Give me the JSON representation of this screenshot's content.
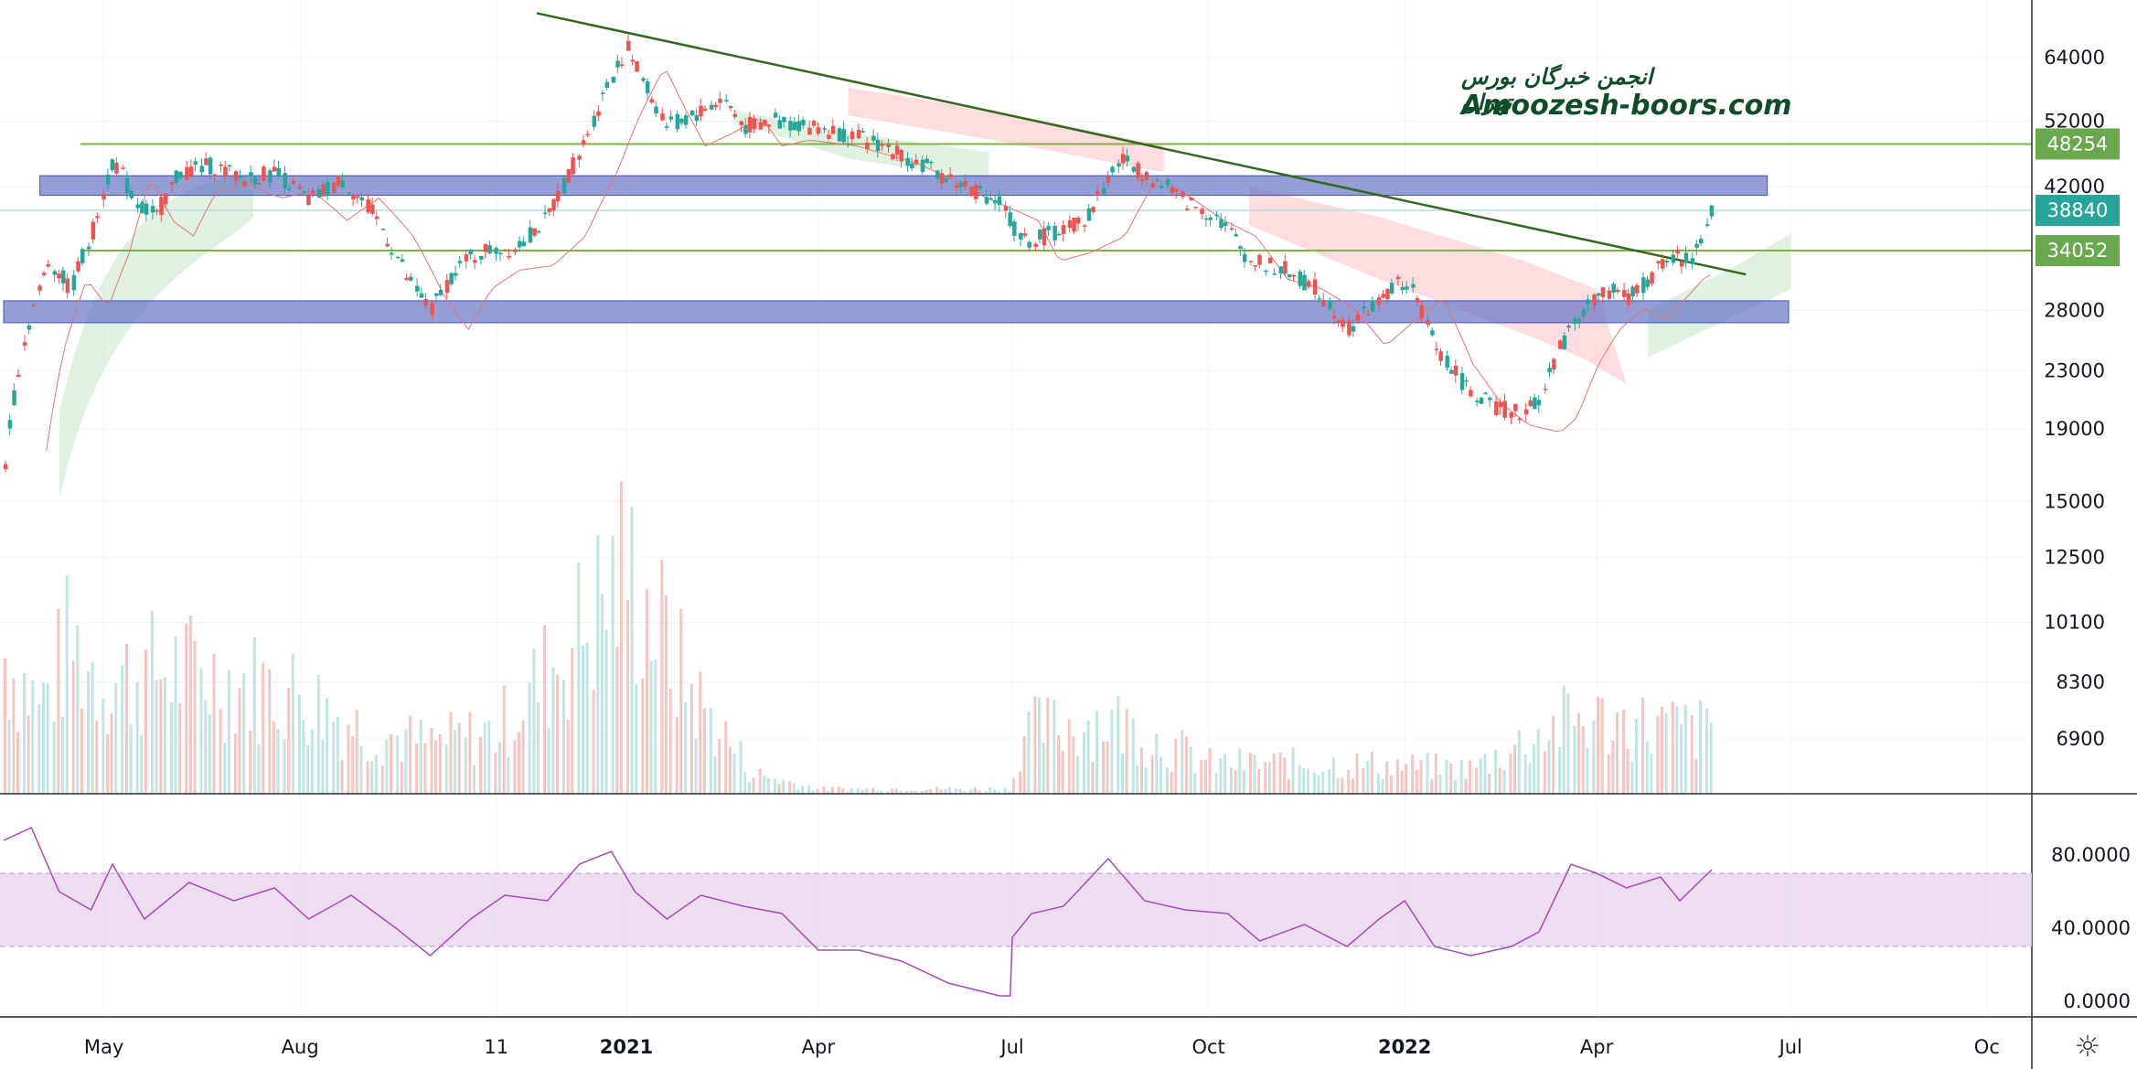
{
  "watermark": {
    "persian": "انجمن خبرگان بورس تهران",
    "site": "Amoozesh-boors.com"
  },
  "colors": {
    "up": "#26a69a",
    "down": "#ef5350",
    "zone": "#5c6bc0",
    "level": "#7cb342",
    "trendline": "#33691e",
    "rsi": "#ab47bc",
    "rsi_band": "#e9d5ee",
    "cloud_bull": "#c8e6c9",
    "cloud_bear": "#ffcdd2",
    "tag_green": "#6aa84f",
    "tag_teal": "#26a69a"
  },
  "toolbar": {
    "settings_icon": "gear-icon"
  },
  "chart_data": {
    "type": "candlestick",
    "scale": "log",
    "x_labels": [
      "May",
      "Aug",
      "11",
      "2021",
      "Apr",
      "Jul",
      "Oct",
      "2022",
      "Apr",
      "Jul",
      "Oc"
    ],
    "bold_x_labels": [
      "2021",
      "2022"
    ],
    "y_ticks": [
      64000,
      52000,
      42000,
      28000,
      23000,
      19000,
      15000,
      12500,
      10100,
      8300,
      6900
    ],
    "y_labels": [
      "64000",
      "52000",
      "42000",
      "28000",
      "23000",
      "19000",
      "15000",
      "12500",
      "10100",
      "8300",
      "6900"
    ],
    "price_tags": [
      {
        "value": 48254,
        "label": "48254",
        "color": "#6aa84f"
      },
      {
        "value": 38840,
        "label": "38840",
        "color": "#26a69a"
      },
      {
        "value": 34052,
        "label": "34052",
        "color": "#6aa84f"
      }
    ],
    "horizontal_levels": [
      48254,
      34052
    ],
    "last_price_line": 38840,
    "zones": [
      {
        "from": "2020-04-01",
        "to": "2022-06-20",
        "low": 40800,
        "high": 43500
      },
      {
        "from": "2020-03-15",
        "to": "2022-06-30",
        "low": 26900,
        "high": 28900
      }
    ],
    "trendline": {
      "from": {
        "date": "2020-11-20",
        "price": 74000
      },
      "to": {
        "date": "2022-06-10",
        "price": 31500
      }
    },
    "price_path": [
      [
        "2020-03-15",
        17000
      ],
      [
        "2020-03-25",
        26000
      ],
      [
        "2020-04-05",
        33000
      ],
      [
        "2020-04-15",
        30000
      ],
      [
        "2020-04-25",
        36000
      ],
      [
        "2020-05-05",
        46000
      ],
      [
        "2020-05-15",
        40000
      ],
      [
        "2020-05-25",
        38000
      ],
      [
        "2020-06-05",
        44000
      ],
      [
        "2020-06-20",
        45000
      ],
      [
        "2020-07-05",
        43000
      ],
      [
        "2020-07-20",
        44000
      ],
      [
        "2020-08-05",
        40000
      ],
      [
        "2020-08-20",
        43000
      ],
      [
        "2020-09-05",
        38000
      ],
      [
        "2020-09-20",
        31000
      ],
      [
        "2020-10-01",
        28000
      ],
      [
        "2020-10-12",
        32000
      ],
      [
        "2020-10-25",
        34000
      ],
      [
        "2020-11-10",
        34500
      ],
      [
        "2020-11-25",
        38000
      ],
      [
        "2020-12-10",
        47000
      ],
      [
        "2020-12-20",
        56000
      ],
      [
        "2021-01-01",
        66000
      ],
      [
        "2021-01-10",
        58000
      ],
      [
        "2021-01-20",
        51000
      ],
      [
        "2021-02-01",
        53000
      ],
      [
        "2021-02-15",
        56000
      ],
      [
        "2021-02-25",
        51000
      ],
      [
        "2021-03-10",
        52000
      ],
      [
        "2021-04-01",
        51000
      ],
      [
        "2021-05-01",
        48000
      ],
      [
        "2021-06-01",
        43000
      ],
      [
        "2021-06-25",
        40000
      ],
      [
        "2021-07-05",
        35000
      ],
      [
        "2021-07-20",
        36000
      ],
      [
        "2021-08-05",
        38000
      ],
      [
        "2021-08-20",
        46000
      ],
      [
        "2021-09-05",
        43000
      ],
      [
        "2021-09-20",
        40000
      ],
      [
        "2021-10-05",
        38000
      ],
      [
        "2021-10-20",
        33000
      ],
      [
        "2021-11-05",
        32000
      ],
      [
        "2021-11-20",
        30000
      ],
      [
        "2021-12-05",
        26500
      ],
      [
        "2021-12-20",
        29000
      ],
      [
        "2022-01-01",
        31000
      ],
      [
        "2022-01-15",
        25000
      ],
      [
        "2022-01-28",
        22000
      ],
      [
        "2022-02-10",
        20500
      ],
      [
        "2022-02-25",
        20000
      ],
      [
        "2022-03-05",
        21000
      ],
      [
        "2022-03-15",
        25000
      ],
      [
        "2022-03-25",
        28000
      ],
      [
        "2022-04-05",
        30000
      ],
      [
        "2022-04-15",
        29000
      ],
      [
        "2022-04-25",
        31000
      ],
      [
        "2022-05-05",
        33500
      ],
      [
        "2022-05-15",
        33000
      ],
      [
        "2022-05-25",
        38840
      ]
    ],
    "volume_path": [
      [
        "2020-03-15",
        0.55
      ],
      [
        "2020-04-01",
        0.35
      ],
      [
        "2020-04-15",
        0.6
      ],
      [
        "2020-05-01",
        0.45
      ],
      [
        "2020-06-01",
        0.5
      ],
      [
        "2020-07-01",
        0.45
      ],
      [
        "2020-08-01",
        0.4
      ],
      [
        "2020-09-01",
        0.25
      ],
      [
        "2020-10-01",
        0.2
      ],
      [
        "2020-11-01",
        0.25
      ],
      [
        "2020-12-01",
        0.55
      ],
      [
        "2021-01-01",
        0.9
      ],
      [
        "2021-02-01",
        0.4
      ],
      [
        "2021-03-01",
        0.08
      ],
      [
        "2021-04-01",
        0.02
      ],
      [
        "2021-07-01",
        0.02
      ],
      [
        "2021-07-05",
        0.25
      ],
      [
        "2021-08-15",
        0.3
      ],
      [
        "2021-10-01",
        0.12
      ],
      [
        "2021-12-01",
        0.12
      ],
      [
        "2022-02-01",
        0.1
      ],
      [
        "2022-03-20",
        0.3
      ],
      [
        "2022-05-25",
        0.25
      ]
    ],
    "rsi": {
      "lower": 30,
      "upper": 70,
      "ticks": [
        0,
        40,
        80
      ],
      "tick_labels": [
        "0.0000",
        "40.0000",
        "80.0000"
      ],
      "path": [
        [
          "2020-03-15",
          88
        ],
        [
          "2020-03-28",
          95
        ],
        [
          "2020-04-10",
          60
        ],
        [
          "2020-04-25",
          50
        ],
        [
          "2020-05-05",
          75
        ],
        [
          "2020-05-20",
          45
        ],
        [
          "2020-06-10",
          65
        ],
        [
          "2020-07-01",
          55
        ],
        [
          "2020-07-20",
          62
        ],
        [
          "2020-08-05",
          45
        ],
        [
          "2020-08-25",
          58
        ],
        [
          "2020-09-15",
          40
        ],
        [
          "2020-10-01",
          25
        ],
        [
          "2020-10-20",
          45
        ],
        [
          "2020-11-05",
          58
        ],
        [
          "2020-11-25",
          55
        ],
        [
          "2020-12-10",
          75
        ],
        [
          "2020-12-25",
          82
        ],
        [
          "2021-01-05",
          60
        ],
        [
          "2021-01-20",
          45
        ],
        [
          "2021-02-05",
          58
        ],
        [
          "2021-02-25",
          52
        ],
        [
          "2021-03-15",
          48
        ],
        [
          "2021-04-01",
          28
        ],
        [
          "2021-04-20",
          28
        ],
        [
          "2021-05-10",
          22
        ],
        [
          "2021-06-01",
          10
        ],
        [
          "2021-06-25",
          3
        ],
        [
          "2021-06-30",
          3
        ],
        [
          "2021-07-01",
          35
        ],
        [
          "2021-07-10",
          48
        ],
        [
          "2021-07-25",
          52
        ],
        [
          "2021-08-15",
          78
        ],
        [
          "2021-09-01",
          55
        ],
        [
          "2021-09-20",
          50
        ],
        [
          "2021-10-10",
          48
        ],
        [
          "2021-10-25",
          33
        ],
        [
          "2021-11-15",
          42
        ],
        [
          "2021-12-05",
          30
        ],
        [
          "2021-12-20",
          45
        ],
        [
          "2022-01-01",
          55
        ],
        [
          "2022-01-15",
          30
        ],
        [
          "2022-02-01",
          25
        ],
        [
          "2022-02-20",
          30
        ],
        [
          "2022-03-05",
          38
        ],
        [
          "2022-03-20",
          75
        ],
        [
          "2022-04-01",
          70
        ],
        [
          "2022-04-15",
          62
        ],
        [
          "2022-05-01",
          68
        ],
        [
          "2022-05-10",
          55
        ],
        [
          "2022-05-25",
          72
        ]
      ]
    }
  }
}
